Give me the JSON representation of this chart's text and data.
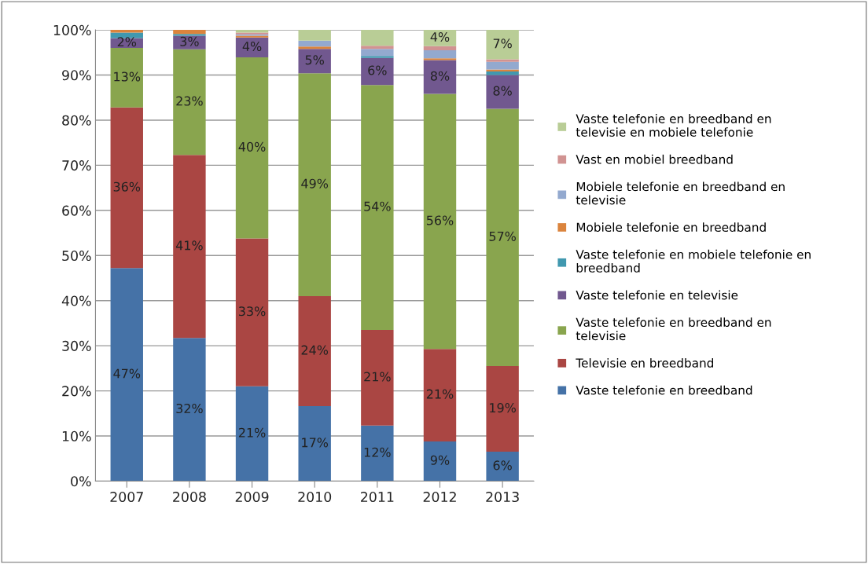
{
  "chart_data": {
    "type": "bar",
    "stacked": true,
    "categories": [
      "2007",
      "2008",
      "2009",
      "2010",
      "2011",
      "2012",
      "2013"
    ],
    "ylim": [
      0,
      100
    ],
    "yticks": [
      {
        "value": 0,
        "label": "0%"
      },
      {
        "value": 10,
        "label": "10%"
      },
      {
        "value": 20,
        "label": "20%"
      },
      {
        "value": 30,
        "label": "30%"
      },
      {
        "value": 40,
        "label": "40%"
      },
      {
        "value": 50,
        "label": "50%"
      },
      {
        "value": 60,
        "label": "60%"
      },
      {
        "value": 70,
        "label": "70%"
      },
      {
        "value": 80,
        "label": "80%"
      },
      {
        "value": 90,
        "label": "90%"
      },
      {
        "value": 100,
        "label": "100%"
      }
    ],
    "grid": "y",
    "legend": "right",
    "series": [
      {
        "name": "Vaste telefonie en breedband",
        "color": "#4572a7",
        "values": [
          47.2,
          31.7,
          21.0,
          16.6,
          12.3,
          8.8,
          6.5
        ],
        "value_labels": [
          "47%",
          "32%",
          "21%",
          "17%",
          "12%",
          "9%",
          "6%"
        ]
      },
      {
        "name": "Televisie en breedband",
        "color": "#aa4643",
        "values": [
          35.6,
          40.6,
          32.8,
          24.4,
          21.2,
          20.5,
          19.0
        ],
        "value_labels": [
          "36%",
          "41%",
          "33%",
          "24%",
          "21%",
          "21%",
          "19%"
        ]
      },
      {
        "name": "Vaste telefonie en breedband en televisie",
        "color": "#89a54e",
        "values": [
          13.2,
          23.4,
          40.1,
          49.4,
          54.3,
          56.5,
          57.0
        ],
        "value_labels": [
          "13%",
          "23%",
          "40%",
          "49%",
          "54%",
          "56%",
          "57%"
        ]
      },
      {
        "name": "Vaste telefonie en televisie",
        "color": "#71588f",
        "values": [
          2.2,
          3.0,
          4.4,
          5.4,
          6.0,
          7.5,
          7.5
        ],
        "value_labels": [
          "2%",
          "3%",
          "4%",
          "5%",
          "6%",
          "8%",
          "8%"
        ]
      },
      {
        "name": "Vaste telefonie en mobiele telefonie en breedband",
        "color": "#4198af",
        "values": [
          1.2,
          0.4,
          0,
          0,
          0.4,
          0,
          0.8
        ]
      },
      {
        "name": "Mobiele telefonie en breedband",
        "color": "#db843d",
        "values": [
          0.6,
          0.9,
          0.4,
          0.5,
          0,
          0.4,
          0.4
        ]
      },
      {
        "name": "Mobiele telefonie en breedband en televisie",
        "color": "#93a9cf",
        "values": [
          0,
          0,
          0.3,
          1.3,
          1.6,
          1.8,
          1.7
        ]
      },
      {
        "name": "Vast en mobiel breedband",
        "color": "#d19392",
        "values": [
          0,
          0,
          0.4,
          0,
          0.7,
          0.9,
          0.6
        ]
      },
      {
        "name": "Vaste telefonie en breedband en televisie en mobiele telefonie",
        "color": "#b9cd96",
        "values": [
          0,
          0,
          0.6,
          2.4,
          3.5,
          3.6,
          6.5
        ],
        "value_labels": [
          null,
          null,
          null,
          null,
          null,
          "4%",
          "7%"
        ]
      }
    ]
  }
}
